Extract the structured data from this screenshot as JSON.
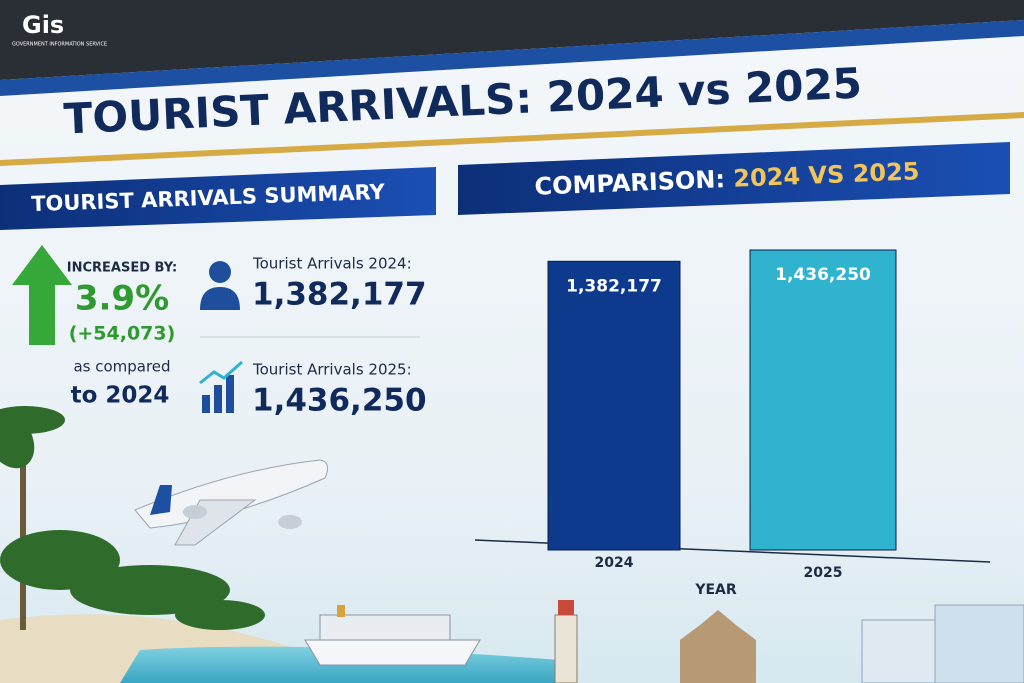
{
  "logo": {
    "mark": "Gis",
    "subtitle": "GOVERNMENT INFORMATION SERVICE"
  },
  "title": "TOURIST ARRIVALS: 2024 vs 2025",
  "summary": {
    "heading": "TOURIST ARRIVALS SUMMARY",
    "increase_label": "INCREASED BY:",
    "increase_percent": "3.9%",
    "increase_count": "(+54,073)",
    "compare_line1": "as compared",
    "compare_line2": "to 2024",
    "stats": [
      {
        "label": "Tourist Arrivals 2024:",
        "value": "1,382,177"
      },
      {
        "label": "Tourist Arrivals 2025:",
        "value": "1,436,250"
      }
    ]
  },
  "chart_data": {
    "type": "bar",
    "title_prefix": "COMPARISON:",
    "title_highlight": "2024 VS 2025",
    "categories": [
      "2024",
      "2025"
    ],
    "values": [
      1382177,
      1436250
    ],
    "value_labels": [
      "1,382,177",
      "1,436,250"
    ],
    "colors": [
      "#0d3a8c",
      "#2fb3cf"
    ],
    "x_label": "YEAR"
  }
}
